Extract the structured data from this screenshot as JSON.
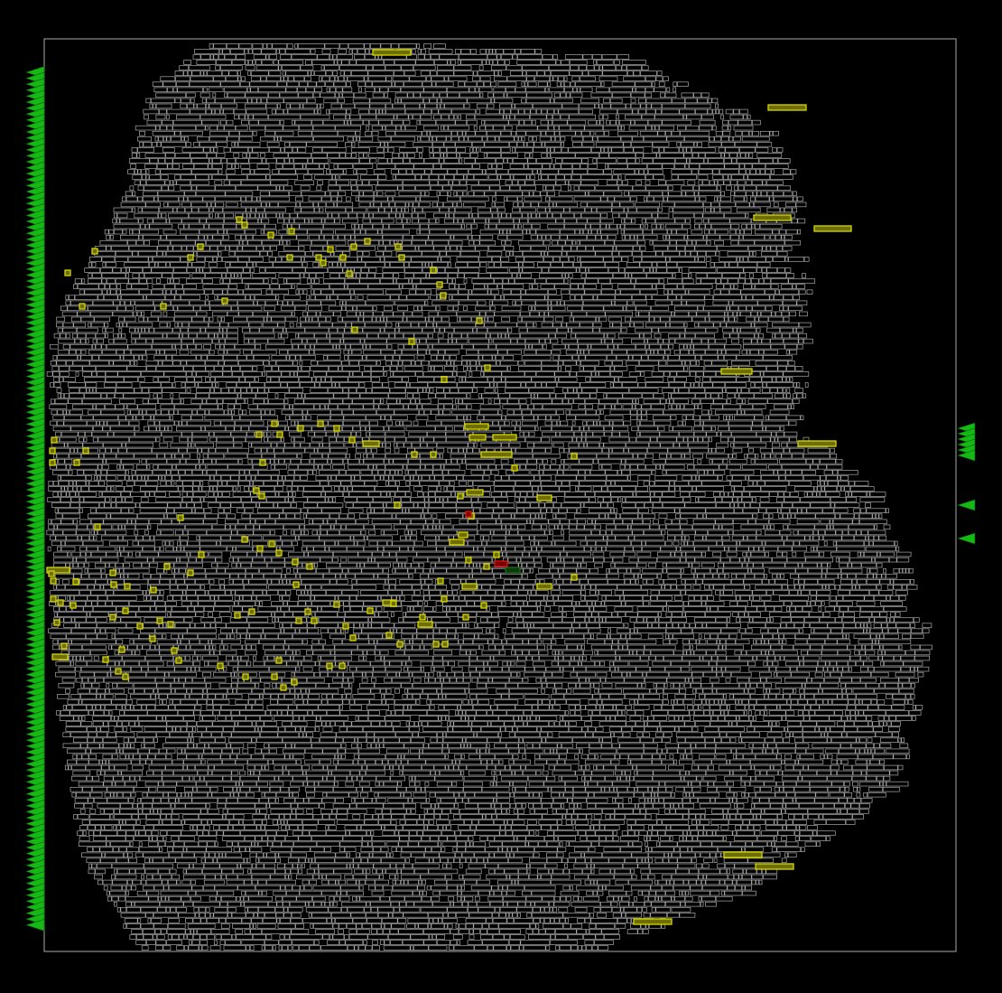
{
  "colors": {
    "background": "#000000",
    "die_outline": "#8c8c8c",
    "cell": "#a8a8a8",
    "highlight": "#d7d700",
    "highlight_fill": "#6e6e00",
    "critical": "#e01010",
    "critical_fill": "#7a0000",
    "dark_cell": "#1d6b1d",
    "pin": "#16b816",
    "pin_stroke": "#0a5a0a"
  },
  "legend": [],
  "icons": {
    "io_pin": "triangle-marker-icon"
  }
}
